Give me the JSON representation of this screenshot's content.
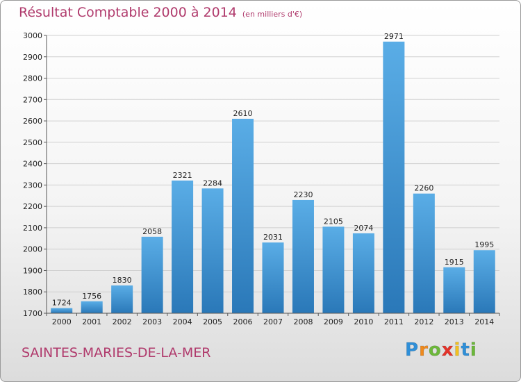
{
  "chart_data": {
    "type": "bar",
    "title": "Résultat Comptable 2000 à 2014",
    "subtitle": "(en milliers d'€)",
    "categories": [
      "2000",
      "2001",
      "2002",
      "2003",
      "2004",
      "2005",
      "2006",
      "2007",
      "2008",
      "2009",
      "2010",
      "2011",
      "2012",
      "2013",
      "2014"
    ],
    "values": [
      1724,
      1756,
      1830,
      2058,
      2321,
      2284,
      2610,
      2031,
      2230,
      2105,
      2074,
      2971,
      2260,
      1915,
      1995
    ],
    "ylim": [
      1700,
      3000
    ],
    "yticks": [
      1700,
      1800,
      1900,
      2000,
      2100,
      2200,
      2300,
      2400,
      2500,
      2600,
      2700,
      2800,
      2900,
      3000
    ],
    "grid": true,
    "colors": {
      "bar_light": "#5aade6",
      "bar_dark": "#2a78b8",
      "grid": "#d0d0d0",
      "text_accent": "#b03a6c"
    }
  },
  "footer": {
    "city": "SAINTES-MARIES-DE-LA-MER",
    "logo_letters": [
      {
        "ch": "P",
        "color": "#2f8fd8"
      },
      {
        "ch": "r",
        "color": "#f08a1c"
      },
      {
        "ch": "o",
        "color": "#6cb83a"
      },
      {
        "ch": "x",
        "color": "#e5332a"
      },
      {
        "ch": "i",
        "color": "#f2c01e"
      },
      {
        "ch": "t",
        "color": "#2f8fd8"
      },
      {
        "ch": "i",
        "color": "#6cb83a"
      }
    ]
  }
}
